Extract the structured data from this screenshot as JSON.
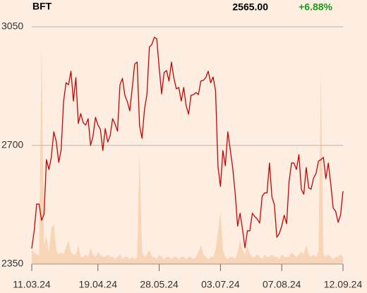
{
  "header": {
    "symbol": "BFT",
    "price": "2565.00",
    "change": "+6.88%"
  },
  "chart_data": {
    "type": "line",
    "xlim": [
      0,
      127
    ],
    "xticks": [
      {
        "value": 0,
        "label": "11.03.24"
      },
      {
        "value": 27,
        "label": "19.04.24"
      },
      {
        "value": 52,
        "label": "28.05.24"
      },
      {
        "value": 77,
        "label": "03.07.24"
      },
      {
        "value": 102,
        "label": "07.08.24"
      },
      {
        "value": 127,
        "label": "12.09.24"
      }
    ],
    "ylim": [
      2350,
      3050
    ],
    "yticks": [
      2350,
      2700,
      3050
    ],
    "grid": true,
    "color": "#cc0000",
    "volume_color": "#f9d5b8",
    "volume_lim": [
      0,
      100
    ],
    "values": [
      2396,
      2448,
      2527,
      2527,
      2479,
      2496,
      2658,
      2629,
      2666,
      2740,
      2712,
      2650,
      2687,
      2831,
      2885,
      2879,
      2919,
      2831,
      2900,
      2765,
      2794,
      2767,
      2760,
      2779,
      2700,
      2727,
      2783,
      2760,
      2748,
      2685,
      2750,
      2710,
      2729,
      2779,
      2763,
      2742,
      2879,
      2898,
      2848,
      2829,
      2802,
      2869,
      2940,
      2946,
      2758,
      2721,
      2806,
      2850,
      2990,
      2998,
      3019,
      3015,
      2929,
      2852,
      2915,
      2921,
      2890,
      2946,
      2898,
      2867,
      2871,
      2831,
      2871,
      2817,
      2792,
      2848,
      2850,
      2856,
      2850,
      2890,
      2892,
      2900,
      2919,
      2885,
      2902,
      2862,
      2637,
      2579,
      2685,
      2640,
      2740,
      2687,
      2633,
      2560,
      2462,
      2500,
      2452,
      2398,
      2448,
      2448,
      2500,
      2490,
      2483,
      2471,
      2550,
      2560,
      2560,
      2648,
      2548,
      2525,
      2429,
      2440,
      2462,
      2494,
      2469,
      2594,
      2648,
      2648,
      2629,
      2673,
      2571,
      2556,
      2635,
      2575,
      2571,
      2604,
      2617,
      2654,
      2658,
      2665,
      2602,
      2648,
      2587,
      2515,
      2506,
      2473,
      2494,
      2565
    ],
    "volume": [
      6,
      5,
      4,
      4,
      93,
      8,
      12,
      5,
      15,
      17,
      6,
      4,
      5,
      4,
      7,
      10,
      5,
      4,
      4,
      8,
      3,
      3,
      4,
      3,
      7,
      4,
      3,
      5,
      4,
      3,
      3,
      4,
      3,
      3,
      2,
      3,
      4,
      2,
      3,
      3,
      2,
      3,
      2,
      3,
      48,
      5,
      3,
      4,
      6,
      3,
      3,
      2,
      4,
      3,
      2,
      3,
      3,
      2,
      3,
      3,
      2,
      3,
      3,
      2,
      3,
      3,
      2,
      3,
      5,
      8,
      4,
      3,
      2,
      3,
      3,
      6,
      14,
      22,
      6,
      3,
      2,
      3,
      3,
      2,
      5,
      10,
      6,
      4,
      8,
      4,
      3,
      3,
      4,
      3,
      2,
      4,
      3,
      3,
      4,
      3,
      3,
      2,
      4,
      3,
      3,
      3,
      5,
      4,
      3,
      4,
      5,
      4,
      8,
      4,
      3,
      4,
      3,
      5,
      81,
      4,
      3,
      4,
      3,
      2,
      3,
      3,
      4,
      3
    ]
  }
}
